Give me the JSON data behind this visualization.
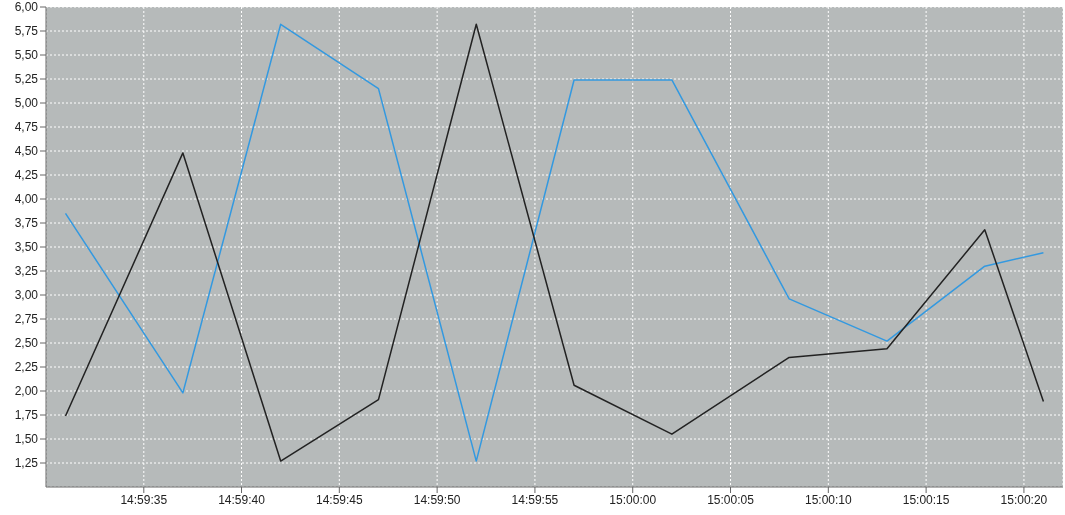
{
  "chart_data": {
    "type": "line",
    "x": [
      14.991944,
      14.993611,
      14.995,
      14.996389,
      14.997778,
      14.999167,
      15.000556,
      15.002222,
      15.003611,
      15.005,
      15.005833
    ],
    "series": [
      {
        "color": "#3399e0",
        "values": [
          3.85,
          1.98,
          5.82,
          5.15,
          1.27,
          5.24,
          5.24,
          2.96,
          2.52,
          3.3,
          3.44
        ]
      },
      {
        "color": "#222222",
        "values": [
          1.74,
          4.48,
          1.27,
          1.91,
          5.82,
          2.06,
          1.55,
          2.35,
          2.44,
          3.68,
          1.89
        ]
      }
    ],
    "xlim": [
      14.991667,
      15.006111
    ],
    "xticks": [
      {
        "value": 14.993056,
        "label": "14:59:35"
      },
      {
        "value": 14.994444,
        "label": "14:59:40"
      },
      {
        "value": 14.995833,
        "label": "14:59:45"
      },
      {
        "value": 14.997222,
        "label": "14:59:50"
      },
      {
        "value": 14.998611,
        "label": "14:59:55"
      },
      {
        "value": 15,
        "label": "15:00:00"
      },
      {
        "value": 15.001389,
        "label": "15:00:05"
      },
      {
        "value": 15.002778,
        "label": "15:00:10"
      },
      {
        "value": 15.004167,
        "label": "15:00:15"
      },
      {
        "value": 15.005556,
        "label": "15:00:20"
      }
    ],
    "ylim": [
      1,
      6
    ],
    "yticks": [
      {
        "value": 1.25,
        "label": "1,25"
      },
      {
        "value": 1.5,
        "label": "1,50"
      },
      {
        "value": 1.75,
        "label": "1,75"
      },
      {
        "value": 2,
        "label": "2,00"
      },
      {
        "value": 2.25,
        "label": "2,25"
      },
      {
        "value": 2.5,
        "label": "2,50"
      },
      {
        "value": 2.75,
        "label": "2,75"
      },
      {
        "value": 3,
        "label": "3,00"
      },
      {
        "value": 3.25,
        "label": "3,25"
      },
      {
        "value": 3.5,
        "label": "3,50"
      },
      {
        "value": 3.75,
        "label": "3,75"
      },
      {
        "value": 4,
        "label": "4,00"
      },
      {
        "value": 4.25,
        "label": "4,25"
      },
      {
        "value": 4.5,
        "label": "4,50"
      },
      {
        "value": 4.75,
        "label": "4,75"
      },
      {
        "value": 5,
        "label": "5,00"
      },
      {
        "value": 5.25,
        "label": "5,25"
      },
      {
        "value": 5.5,
        "label": "5,50"
      },
      {
        "value": 5.75,
        "label": "5,75"
      },
      {
        "value": 6,
        "label": "6,00"
      }
    ],
    "grid": true,
    "marker": "none",
    "line_style": "solid"
  }
}
